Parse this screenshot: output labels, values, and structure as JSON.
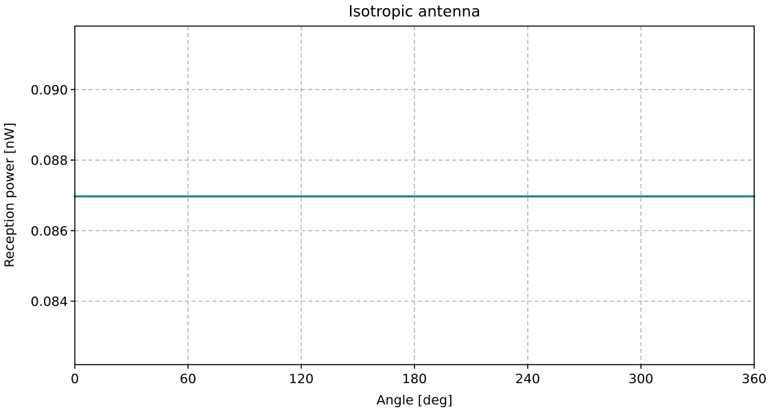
{
  "chart_data": {
    "type": "line",
    "title": "Isotropic antenna",
    "xlabel": "Angle [deg]",
    "ylabel": "Reception power [nW]",
    "xlim": [
      0,
      360
    ],
    "ylim": [
      0.0822,
      0.0918
    ],
    "xticks": [
      0,
      60,
      120,
      180,
      240,
      300,
      360
    ],
    "yticks": [
      0.084,
      0.086,
      0.088,
      0.09
    ],
    "ytick_labels": [
      "0.084",
      "0.086",
      "0.088",
      "0.090"
    ],
    "grid": true,
    "series": [
      {
        "x": [
          0,
          360
        ],
        "y": [
          0.08697,
          0.08697
        ],
        "color": "#1f77b4"
      }
    ]
  }
}
